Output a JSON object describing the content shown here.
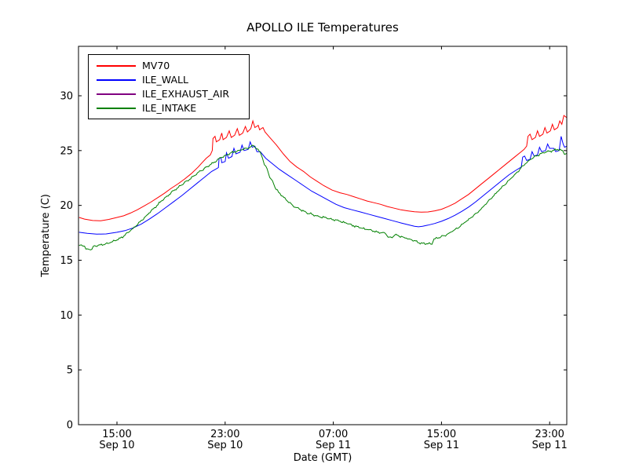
{
  "title": "APOLLO ILE Temperatures",
  "xlabel": "Date (GMT)",
  "ylabel": "Temperature (C)",
  "colors": {
    "background": "#ffffff",
    "frame": "#000000",
    "mv70": "#ff0000",
    "ile_wall": "#0000ff",
    "ile_exhaust_air": "#800080",
    "ile_intake": "#008000"
  },
  "legend": [
    {
      "label": "MV70",
      "color": "#ff0000"
    },
    {
      "label": "ILE_WALL",
      "color": "#0000ff"
    },
    {
      "label": "ILE_EXHAUST_AIR",
      "color": "#800080"
    },
    {
      "label": "ILE_INTAKE",
      "color": "#008000"
    }
  ],
  "axes": {
    "x_ticks": [
      {
        "t": 15,
        "time": "15:00",
        "date": "Sep 10"
      },
      {
        "t": 23,
        "time": "23:00",
        "date": "Sep 10"
      },
      {
        "t": 31,
        "time": "07:00",
        "date": "Sep 11"
      },
      {
        "t": 39,
        "time": "15:00",
        "date": "Sep 11"
      },
      {
        "t": 47,
        "time": "23:00",
        "date": "Sep 11"
      }
    ],
    "y_ticks": [
      0,
      5,
      10,
      15,
      20,
      25,
      30
    ],
    "xlim_hours_since_sep10_0000_gmt": [
      12.15,
      48.27
    ],
    "ylim": [
      0,
      34.5
    ],
    "grid": false,
    "legend_position": "upper left"
  },
  "chart_data": {
    "type": "line",
    "title": "APOLLO ILE Temperatures",
    "xlabel": "Date (GMT)",
    "ylabel": "Temperature (C)",
    "x_unit": "hours since Sep 10 00:00 GMT",
    "series": [
      {
        "name": "MV70",
        "color": "#ff0000",
        "noise": 0,
        "points": [
          [
            12.2,
            18.9
          ],
          [
            12.6,
            18.75
          ],
          [
            13.2,
            18.62
          ],
          [
            13.8,
            18.6
          ],
          [
            14.4,
            18.72
          ],
          [
            15.0,
            18.9
          ],
          [
            15.5,
            19.05
          ],
          [
            16.0,
            19.3
          ],
          [
            16.5,
            19.6
          ],
          [
            17.0,
            19.95
          ],
          [
            17.5,
            20.3
          ],
          [
            18.0,
            20.7
          ],
          [
            18.5,
            21.1
          ],
          [
            19.0,
            21.55
          ],
          [
            19.5,
            21.95
          ],
          [
            20.0,
            22.4
          ],
          [
            20.5,
            22.9
          ],
          [
            21.0,
            23.5
          ],
          [
            21.3,
            23.9
          ],
          [
            21.6,
            24.3
          ],
          [
            21.9,
            24.6
          ],
          [
            22.05,
            25.0
          ],
          [
            22.1,
            26.1
          ],
          [
            22.25,
            26.3
          ],
          [
            22.35,
            25.8
          ],
          [
            22.6,
            26.0
          ],
          [
            22.75,
            26.6
          ],
          [
            22.85,
            26.0
          ],
          [
            23.1,
            26.2
          ],
          [
            23.3,
            26.8
          ],
          [
            23.45,
            26.2
          ],
          [
            23.7,
            26.4
          ],
          [
            23.9,
            27.0
          ],
          [
            24.05,
            26.4
          ],
          [
            24.3,
            26.6
          ],
          [
            24.5,
            27.2
          ],
          [
            24.65,
            26.7
          ],
          [
            24.9,
            27.0
          ],
          [
            25.05,
            27.7
          ],
          [
            25.2,
            27.1
          ],
          [
            25.45,
            27.3
          ],
          [
            25.55,
            26.9
          ],
          [
            25.8,
            27.1
          ],
          [
            25.95,
            26.7
          ],
          [
            26.3,
            26.2
          ],
          [
            26.8,
            25.5
          ],
          [
            27.3,
            24.7
          ],
          [
            27.8,
            24.0
          ],
          [
            28.3,
            23.5
          ],
          [
            28.8,
            23.1
          ],
          [
            29.3,
            22.6
          ],
          [
            29.8,
            22.2
          ],
          [
            30.3,
            21.8
          ],
          [
            30.9,
            21.4
          ],
          [
            31.5,
            21.15
          ],
          [
            32.0,
            21.0
          ],
          [
            32.5,
            20.8
          ],
          [
            33.0,
            20.6
          ],
          [
            33.5,
            20.4
          ],
          [
            34.0,
            20.25
          ],
          [
            34.5,
            20.1
          ],
          [
            35.0,
            19.9
          ],
          [
            35.5,
            19.75
          ],
          [
            36.0,
            19.6
          ],
          [
            36.5,
            19.5
          ],
          [
            37.0,
            19.42
          ],
          [
            37.5,
            19.38
          ],
          [
            38.0,
            19.4
          ],
          [
            38.5,
            19.5
          ],
          [
            39.0,
            19.65
          ],
          [
            39.5,
            19.9
          ],
          [
            40.0,
            20.2
          ],
          [
            40.5,
            20.6
          ],
          [
            41.0,
            21.0
          ],
          [
            41.5,
            21.5
          ],
          [
            42.0,
            22.0
          ],
          [
            42.5,
            22.5
          ],
          [
            43.0,
            23.0
          ],
          [
            43.5,
            23.5
          ],
          [
            44.0,
            24.0
          ],
          [
            44.4,
            24.4
          ],
          [
            44.8,
            24.8
          ],
          [
            45.1,
            25.1
          ],
          [
            45.3,
            25.4
          ],
          [
            45.4,
            26.3
          ],
          [
            45.55,
            26.5
          ],
          [
            45.7,
            26.0
          ],
          [
            45.95,
            26.2
          ],
          [
            46.1,
            26.8
          ],
          [
            46.25,
            26.3
          ],
          [
            46.5,
            26.5
          ],
          [
            46.65,
            27.1
          ],
          [
            46.8,
            26.6
          ],
          [
            47.05,
            26.8
          ],
          [
            47.2,
            27.4
          ],
          [
            47.35,
            26.9
          ],
          [
            47.6,
            27.1
          ],
          [
            47.75,
            27.7
          ],
          [
            47.9,
            27.4
          ],
          [
            48.05,
            28.2
          ],
          [
            48.27,
            28.0
          ]
        ]
      },
      {
        "name": "ILE_WALL",
        "color": "#0000ff",
        "noise": 0,
        "points": [
          [
            12.2,
            17.55
          ],
          [
            12.8,
            17.45
          ],
          [
            13.5,
            17.38
          ],
          [
            14.2,
            17.4
          ],
          [
            15.0,
            17.55
          ],
          [
            15.6,
            17.7
          ],
          [
            16.2,
            17.95
          ],
          [
            16.8,
            18.3
          ],
          [
            17.4,
            18.75
          ],
          [
            18.0,
            19.25
          ],
          [
            18.6,
            19.8
          ],
          [
            19.2,
            20.35
          ],
          [
            19.8,
            20.9
          ],
          [
            20.4,
            21.5
          ],
          [
            21.0,
            22.1
          ],
          [
            21.5,
            22.6
          ],
          [
            22.0,
            23.1
          ],
          [
            22.3,
            23.3
          ],
          [
            22.5,
            23.45
          ],
          [
            22.55,
            24.3
          ],
          [
            22.7,
            24.35
          ],
          [
            22.75,
            23.9
          ],
          [
            23.0,
            24.0
          ],
          [
            23.1,
            24.8
          ],
          [
            23.25,
            24.3
          ],
          [
            23.5,
            24.45
          ],
          [
            23.65,
            25.2
          ],
          [
            23.8,
            24.7
          ],
          [
            24.1,
            24.85
          ],
          [
            24.25,
            25.5
          ],
          [
            24.4,
            25.0
          ],
          [
            24.7,
            25.1
          ],
          [
            24.85,
            25.8
          ],
          [
            25.0,
            25.3
          ],
          [
            25.2,
            25.4
          ],
          [
            25.35,
            24.9
          ],
          [
            25.6,
            24.9
          ],
          [
            26.0,
            24.3
          ],
          [
            26.5,
            23.8
          ],
          [
            27.0,
            23.3
          ],
          [
            27.6,
            22.8
          ],
          [
            28.2,
            22.3
          ],
          [
            28.8,
            21.8
          ],
          [
            29.4,
            21.3
          ],
          [
            30.0,
            20.9
          ],
          [
            30.6,
            20.5
          ],
          [
            31.2,
            20.1
          ],
          [
            31.8,
            19.8
          ],
          [
            32.4,
            19.6
          ],
          [
            33.0,
            19.4
          ],
          [
            33.6,
            19.2
          ],
          [
            34.2,
            19.0
          ],
          [
            34.8,
            18.8
          ],
          [
            35.4,
            18.6
          ],
          [
            36.0,
            18.4
          ],
          [
            36.5,
            18.25
          ],
          [
            37.0,
            18.1
          ],
          [
            37.3,
            18.05
          ],
          [
            37.6,
            18.1
          ],
          [
            38.0,
            18.2
          ],
          [
            38.5,
            18.35
          ],
          [
            39.0,
            18.55
          ],
          [
            39.5,
            18.8
          ],
          [
            40.0,
            19.1
          ],
          [
            40.5,
            19.45
          ],
          [
            41.0,
            19.85
          ],
          [
            41.5,
            20.3
          ],
          [
            42.0,
            20.8
          ],
          [
            42.5,
            21.3
          ],
          [
            43.0,
            21.8
          ],
          [
            43.5,
            22.3
          ],
          [
            44.0,
            22.8
          ],
          [
            44.5,
            23.2
          ],
          [
            44.9,
            23.5
          ],
          [
            45.0,
            24.4
          ],
          [
            45.15,
            24.5
          ],
          [
            45.3,
            24.1
          ],
          [
            45.55,
            24.2
          ],
          [
            45.7,
            24.9
          ],
          [
            45.85,
            24.5
          ],
          [
            46.1,
            24.6
          ],
          [
            46.25,
            25.3
          ],
          [
            46.4,
            24.9
          ],
          [
            46.7,
            25.0
          ],
          [
            46.85,
            25.6
          ],
          [
            47.0,
            25.2
          ],
          [
            47.3,
            25.2
          ],
          [
            47.45,
            24.9
          ],
          [
            47.7,
            25.0
          ],
          [
            47.85,
            26.3
          ],
          [
            48.0,
            25.6
          ],
          [
            48.1,
            25.3
          ],
          [
            48.27,
            25.4
          ]
        ]
      },
      {
        "name": "ILE_EXHAUST_AIR",
        "color": "#800080",
        "noise": 0,
        "points": [
          [
            12.2,
            0
          ],
          [
            48.27,
            0
          ]
        ]
      },
      {
        "name": "ILE_INTAKE",
        "color": "#008000",
        "noise": 0.06,
        "points": [
          [
            12.2,
            16.35
          ],
          [
            12.45,
            16.3
          ],
          [
            12.6,
            16.28
          ],
          [
            12.7,
            16.02
          ],
          [
            12.95,
            15.98
          ],
          [
            13.15,
            16.0
          ],
          [
            13.25,
            16.28
          ],
          [
            13.6,
            16.35
          ],
          [
            14.0,
            16.42
          ],
          [
            14.5,
            16.6
          ],
          [
            15.0,
            16.85
          ],
          [
            15.5,
            17.2
          ],
          [
            16.0,
            17.7
          ],
          [
            16.35,
            18.05
          ],
          [
            16.7,
            18.5
          ],
          [
            17.2,
            19.1
          ],
          [
            17.7,
            19.7
          ],
          [
            18.2,
            20.3
          ],
          [
            18.7,
            20.85
          ],
          [
            19.2,
            21.35
          ],
          [
            19.7,
            21.8
          ],
          [
            20.2,
            22.25
          ],
          [
            20.7,
            22.7
          ],
          [
            21.2,
            23.15
          ],
          [
            21.7,
            23.55
          ],
          [
            22.2,
            23.95
          ],
          [
            22.7,
            24.35
          ],
          [
            23.2,
            24.65
          ],
          [
            23.7,
            24.9
          ],
          [
            24.2,
            25.05
          ],
          [
            24.6,
            25.2
          ],
          [
            24.9,
            25.35
          ],
          [
            25.1,
            25.45
          ],
          [
            25.35,
            25.15
          ],
          [
            25.6,
            24.85
          ],
          [
            25.75,
            24.35
          ],
          [
            25.9,
            23.7
          ],
          [
            26.1,
            23.35
          ],
          [
            26.3,
            22.55
          ],
          [
            26.5,
            22.25
          ],
          [
            26.7,
            21.6
          ],
          [
            26.95,
            21.2
          ],
          [
            27.25,
            20.85
          ],
          [
            27.6,
            20.4
          ],
          [
            28.0,
            20.0
          ],
          [
            28.5,
            19.65
          ],
          [
            29.0,
            19.35
          ],
          [
            29.5,
            19.15
          ],
          [
            30.0,
            18.95
          ],
          [
            30.5,
            18.85
          ],
          [
            31.0,
            18.7
          ],
          [
            31.5,
            18.55
          ],
          [
            32.0,
            18.35
          ],
          [
            32.5,
            18.15
          ],
          [
            33.0,
            17.95
          ],
          [
            33.5,
            17.8
          ],
          [
            34.0,
            17.65
          ],
          [
            34.5,
            17.5
          ],
          [
            34.85,
            17.45
          ],
          [
            35.05,
            17.1
          ],
          [
            35.35,
            17.05
          ],
          [
            35.55,
            17.3
          ],
          [
            35.8,
            17.25
          ],
          [
            36.2,
            17.1
          ],
          [
            36.6,
            16.95
          ],
          [
            37.0,
            16.8
          ],
          [
            37.25,
            16.6
          ],
          [
            37.6,
            16.55
          ],
          [
            38.0,
            16.5
          ],
          [
            38.3,
            16.45
          ],
          [
            38.45,
            16.95
          ],
          [
            38.8,
            17.05
          ],
          [
            39.2,
            17.25
          ],
          [
            39.6,
            17.5
          ],
          [
            40.0,
            17.8
          ],
          [
            40.4,
            18.1
          ],
          [
            40.8,
            18.5
          ],
          [
            41.2,
            18.9
          ],
          [
            41.6,
            19.3
          ],
          [
            42.0,
            19.8
          ],
          [
            42.4,
            20.3
          ],
          [
            42.8,
            20.8
          ],
          [
            43.2,
            21.3
          ],
          [
            43.6,
            21.8
          ],
          [
            44.0,
            22.3
          ],
          [
            44.4,
            22.8
          ],
          [
            44.8,
            23.3
          ],
          [
            45.2,
            23.8
          ],
          [
            45.6,
            24.2
          ],
          [
            46.0,
            24.5
          ],
          [
            46.4,
            24.75
          ],
          [
            46.8,
            24.9
          ],
          [
            47.2,
            25.0
          ],
          [
            47.6,
            25.1
          ],
          [
            47.95,
            25.0
          ],
          [
            48.1,
            24.65
          ],
          [
            48.27,
            24.75
          ]
        ]
      }
    ]
  }
}
